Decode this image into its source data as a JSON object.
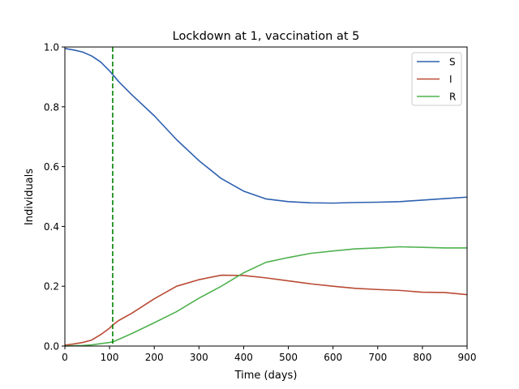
{
  "chart_data": {
    "type": "line",
    "title": "Lockdown at 1, vaccination at 5",
    "xlabel": "Time (days)",
    "ylabel": "Individuals",
    "xlim": [
      0,
      900
    ],
    "ylim": [
      0,
      1.0
    ],
    "xticks": [
      0,
      100,
      200,
      300,
      400,
      500,
      600,
      700,
      800,
      900
    ],
    "yticks": [
      0.0,
      0.2,
      0.4,
      0.6,
      0.8,
      1.0
    ],
    "xtick_labels": [
      "0",
      "100",
      "200",
      "300",
      "400",
      "500",
      "600",
      "700",
      "800",
      "900"
    ],
    "ytick_labels": [
      "0.0",
      "0.2",
      "0.4",
      "0.6",
      "0.8",
      "1.0"
    ],
    "legend_position": "top-right",
    "vline": {
      "x": 107,
      "color": "#008000",
      "style": "dashed"
    },
    "series": [
      {
        "name": "S",
        "color": "#2d60b0",
        "x": [
          0,
          20,
          40,
          60,
          80,
          100,
          107,
          120,
          150,
          200,
          250,
          300,
          350,
          400,
          450,
          500,
          550,
          600,
          650,
          700,
          750,
          800,
          850,
          900
        ],
        "y": [
          0.995,
          0.99,
          0.983,
          0.97,
          0.95,
          0.92,
          0.908,
          0.885,
          0.84,
          0.77,
          0.69,
          0.62,
          0.56,
          0.518,
          0.492,
          0.483,
          0.479,
          0.478,
          0.48,
          0.481,
          0.483,
          0.488,
          0.493,
          0.498
        ]
      },
      {
        "name": "I",
        "color": "#b94a34",
        "x": [
          0,
          20,
          40,
          60,
          80,
          100,
          107,
          120,
          150,
          200,
          250,
          300,
          350,
          400,
          450,
          500,
          550,
          600,
          650,
          700,
          750,
          800,
          850,
          900
        ],
        "y": [
          0.003,
          0.007,
          0.012,
          0.02,
          0.038,
          0.06,
          0.07,
          0.085,
          0.11,
          0.158,
          0.2,
          0.222,
          0.237,
          0.236,
          0.228,
          0.218,
          0.208,
          0.2,
          0.193,
          0.189,
          0.186,
          0.18,
          0.179,
          0.172
        ]
      },
      {
        "name": "R",
        "color": "#4fb24f",
        "x": [
          0,
          20,
          40,
          60,
          80,
          100,
          107,
          120,
          150,
          200,
          250,
          300,
          350,
          400,
          450,
          500,
          550,
          600,
          650,
          700,
          750,
          800,
          850,
          900
        ],
        "y": [
          0.0,
          0.001,
          0.002,
          0.004,
          0.008,
          0.012,
          0.014,
          0.022,
          0.042,
          0.078,
          0.115,
          0.16,
          0.2,
          0.245,
          0.28,
          0.296,
          0.31,
          0.318,
          0.325,
          0.328,
          0.332,
          0.33,
          0.328,
          0.328
        ]
      }
    ]
  }
}
